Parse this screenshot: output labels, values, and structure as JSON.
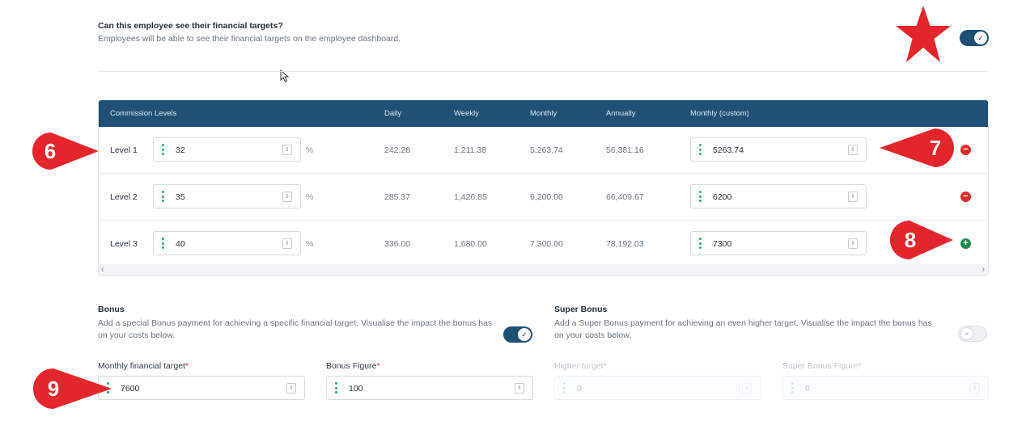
{
  "visibility": {
    "question": "Can this employee see their financial targets?",
    "description": "Employees will be able to see their financial targets on the employee dashboard.",
    "toggle_on": true
  },
  "table": {
    "headers": [
      "Commission Levels",
      "Daily",
      "Weekly",
      "Monthly",
      "Annually",
      "Monthly (custom)"
    ],
    "rows": [
      {
        "level": "Level 1",
        "percent": "32",
        "unit": "%",
        "daily": "242.28",
        "weekly": "1,211.38",
        "monthly": "5,263.74",
        "annually": "56,381.16",
        "custom": "5263.74",
        "action": "remove"
      },
      {
        "level": "Level 2",
        "percent": "35",
        "unit": "%",
        "daily": "285.37",
        "weekly": "1,426.85",
        "monthly": "6,200.00",
        "annually": "66,409.67",
        "custom": "6200",
        "action": "remove"
      },
      {
        "level": "Level 3",
        "percent": "40",
        "unit": "%",
        "daily": "336.00",
        "weekly": "1,680.00",
        "monthly": "7,300.00",
        "annually": "78,192.03",
        "custom": "7300",
        "action": "add"
      }
    ],
    "scroll_left": "‹",
    "scroll_right": "›"
  },
  "bonus": {
    "title": "Bonus",
    "description": "Add a special Bonus payment for achieving a specific financial target. Visualise the impact the bonus has on your costs below.",
    "toggle_on": true,
    "target_label": "Monthly financial target",
    "target_value": "7600",
    "figure_label": "Bonus Figure",
    "figure_value": "100"
  },
  "super_bonus": {
    "title": "Super Bonus",
    "description": "Add a Super Bonus payment for achieving an even higher target. Visualise the impact the bonus has on your costs below.",
    "toggle_on": false,
    "target_label": "Higher target",
    "target_value": "0",
    "figure_label": "Super Bonus Figure",
    "figure_value": "0"
  },
  "required_mark": "*",
  "callouts": {
    "six": "6",
    "seven": "7",
    "eight": "8",
    "nine": "9"
  },
  "colors": {
    "header_bg": "#1f5075",
    "toggle_on": "#1d4e73",
    "callout_red": "#e3262b",
    "grip_green": "#27ae60",
    "remove_red": "#dc2d2d",
    "add_green": "#1e8a45"
  }
}
